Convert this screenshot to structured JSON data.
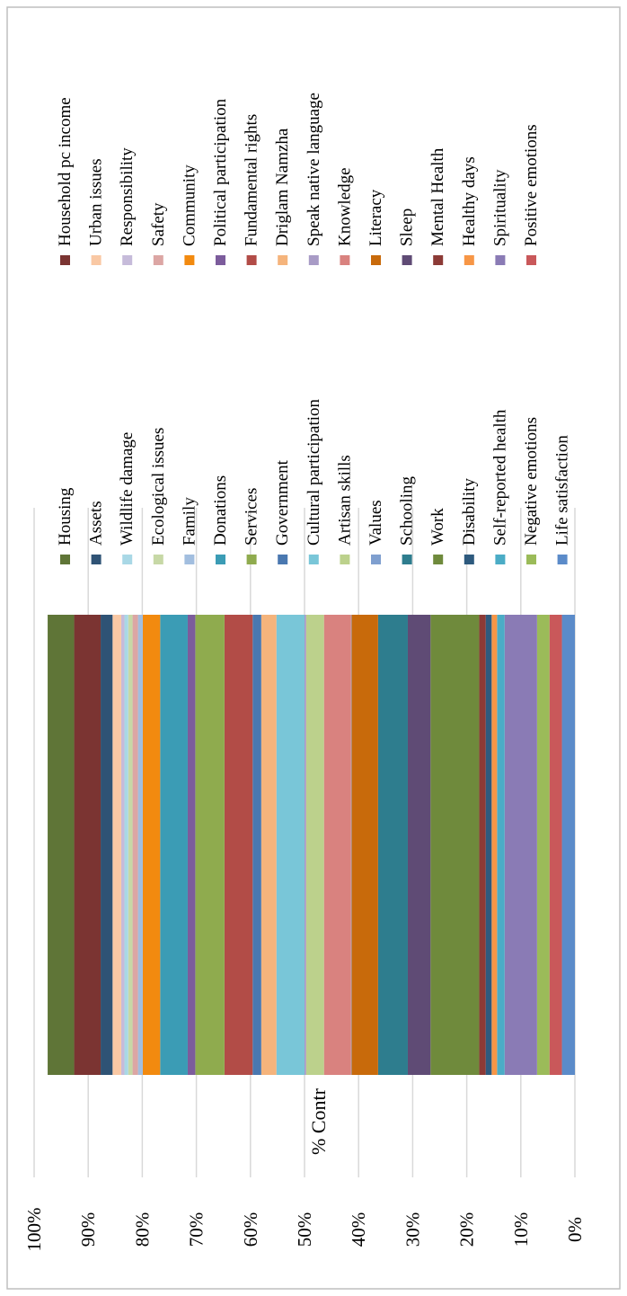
{
  "chart_data": {
    "type": "bar",
    "stacked": true,
    "orientation": "vertical",
    "rotated_page": true,
    "categories": [
      "% Contr"
    ],
    "ylim": [
      0,
      100
    ],
    "yticks": [
      "0%",
      "10%",
      "20%",
      "30%",
      "40%",
      "50%",
      "60%",
      "70%",
      "80%",
      "90%",
      "100%"
    ],
    "grid": true,
    "legend_position": "right",
    "series": [
      {
        "name": "Life satisfaction",
        "values": [
          2.4
        ],
        "color": "#5b8bc9"
      },
      {
        "name": "Positive emotions",
        "values": [
          2.3
        ],
        "color": "#c9585a"
      },
      {
        "name": "Negative emotions",
        "values": [
          2.3
        ],
        "color": "#9bbb59"
      },
      {
        "name": "Spirituality",
        "values": [
          6.0
        ],
        "color": "#8a7bb5"
      },
      {
        "name": "Self-reported health",
        "values": [
          1.4
        ],
        "color": "#4bacc6"
      },
      {
        "name": "Healthy days",
        "values": [
          1.0
        ],
        "color": "#f79646"
      },
      {
        "name": "Disability",
        "values": [
          1.1
        ],
        "color": "#2e5a7e"
      },
      {
        "name": "Mental Health",
        "values": [
          1.2
        ],
        "color": "#8c3a36"
      },
      {
        "name": "Work",
        "values": [
          9.0
        ],
        "color": "#6f8a3c"
      },
      {
        "name": "Sleep",
        "values": [
          4.2
        ],
        "color": "#5f4b75"
      },
      {
        "name": "Schooling",
        "values": [
          5.5
        ],
        "color": "#2e7d8e"
      },
      {
        "name": "Literacy",
        "values": [
          4.9
        ],
        "color": "#c86a0b"
      },
      {
        "name": "Values",
        "values": [
          0.1
        ],
        "color": "#7f9fcf"
      },
      {
        "name": "Knowledge",
        "values": [
          5.0
        ],
        "color": "#d9827f"
      },
      {
        "name": "Artisan skills",
        "values": [
          3.3
        ],
        "color": "#bcd18c"
      },
      {
        "name": "Speak native language",
        "values": [
          0.3
        ],
        "color": "#a89bc6"
      },
      {
        "name": "Cultural participation",
        "values": [
          5.2
        ],
        "color": "#79c6d8"
      },
      {
        "name": "Driglam Namzha",
        "values": [
          2.8
        ],
        "color": "#f5b47c"
      },
      {
        "name": "Government",
        "values": [
          1.6
        ],
        "color": "#4a78b0"
      },
      {
        "name": "Fundamental rights",
        "values": [
          5.2
        ],
        "color": "#b24c47"
      },
      {
        "name": "Services",
        "values": [
          5.4
        ],
        "color": "#8fab4e"
      },
      {
        "name": "Political participation",
        "values": [
          1.4
        ],
        "color": "#7c5c9c"
      },
      {
        "name": "Donations",
        "values": [
          5.1
        ],
        "color": "#3b9cb5"
      },
      {
        "name": "Community",
        "values": [
          3.2
        ],
        "color": "#f28a0f"
      },
      {
        "name": "Family",
        "values": [
          0.9
        ],
        "color": "#a2bedf"
      },
      {
        "name": "Safety",
        "values": [
          1.0
        ],
        "color": "#dca6a4"
      },
      {
        "name": "Ecological issues",
        "values": [
          0.8
        ],
        "color": "#c7d8a6"
      },
      {
        "name": "Wildlife damage",
        "values": [
          0.7
        ],
        "color": "#a9d8e6"
      },
      {
        "name": "Responsibility",
        "values": [
          0.6
        ],
        "color": "#c6bbda"
      },
      {
        "name": "Urban issues",
        "values": [
          1.6
        ],
        "color": "#f9c8a4"
      },
      {
        "name": "Assets",
        "values": [
          2.2
        ],
        "color": "#2f5375"
      },
      {
        "name": "Household pc income",
        "values": [
          4.9
        ],
        "color": "#7b3432"
      },
      {
        "name": "Housing",
        "values": [
          4.9
        ],
        "color": "#5f7537"
      }
    ],
    "legend_order": [
      "Housing",
      "Household pc income",
      "Assets",
      "Urban issues",
      "Wildlife damage",
      "Responsibility",
      "Ecological issues",
      "Safety",
      "Family",
      "Community",
      "Donations",
      "Political participation",
      "Services",
      "Fundamental rights",
      "Government",
      "Driglam Namzha",
      "Cultural participation",
      "Speak native language",
      "Artisan skills",
      "Knowledge",
      "Values",
      "Literacy",
      "Schooling",
      "Sleep",
      "Work",
      "Mental Health",
      "Disability",
      "Healthy days",
      "Self-reported health",
      "Spirituality",
      "Negative emotions",
      "Positive emotions",
      "Life satisfaction"
    ]
  }
}
